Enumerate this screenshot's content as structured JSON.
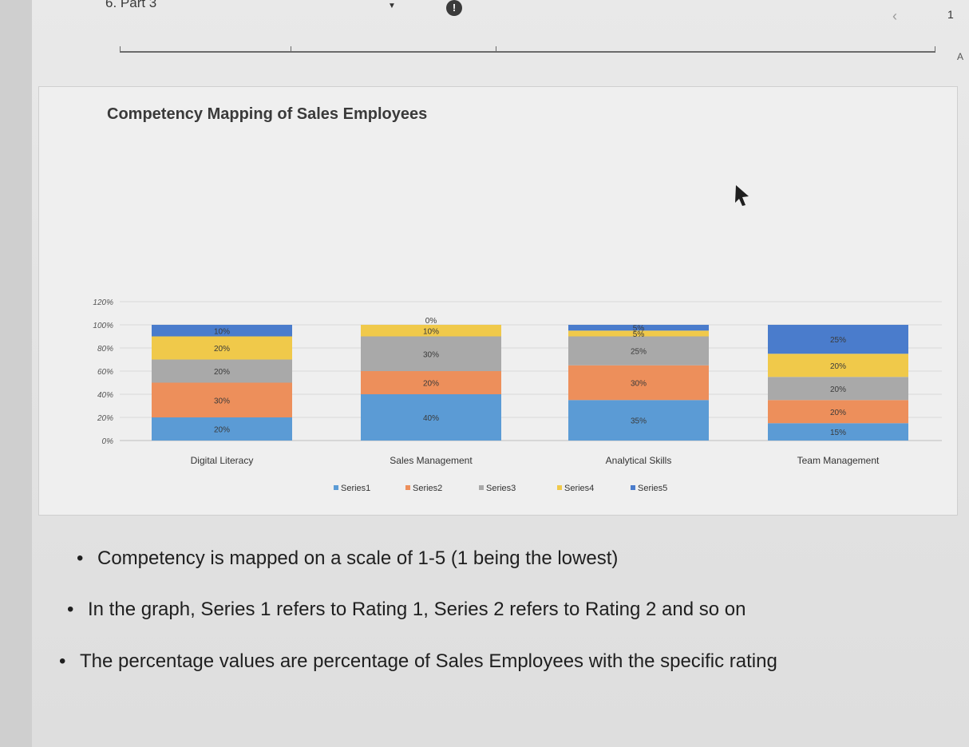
{
  "header": {
    "part_label": "6. Part 3",
    "page_number": "1",
    "side_letter": "A"
  },
  "colors": {
    "series1": "#5b9bd5",
    "series2": "#ed8f5b",
    "series3": "#a9a9a9",
    "series4": "#f0c94a",
    "series5": "#4a7ccc",
    "background": "#efefef",
    "text": "#1f1f1f"
  },
  "chart_data": {
    "type": "bar",
    "stacked": true,
    "title": "Competency Mapping of Sales Employees",
    "categories": [
      "Digital Literacy",
      "Sales Management",
      "Analytical Skills",
      "Team Management"
    ],
    "series": [
      {
        "name": "Series1",
        "values": [
          20,
          40,
          35,
          15
        ],
        "labels": [
          "20%",
          "40%",
          "35%",
          "15%"
        ]
      },
      {
        "name": "Series2",
        "values": [
          30,
          20,
          30,
          20
        ],
        "labels": [
          "30%",
          "20%",
          "30%",
          "20%"
        ]
      },
      {
        "name": "Series3",
        "values": [
          20,
          30,
          25,
          20
        ],
        "labels": [
          "20%",
          "30%",
          "25%",
          "20%"
        ]
      },
      {
        "name": "Series4",
        "values": [
          20,
          10,
          5,
          20
        ],
        "labels": [
          "20%",
          "10%",
          "5%",
          "20%"
        ]
      },
      {
        "name": "Series5",
        "values": [
          10,
          0,
          5,
          25
        ],
        "labels": [
          "10%",
          "0%",
          "5%",
          "25%"
        ]
      }
    ],
    "y_ticks": [
      "0%",
      "20%",
      "40%",
      "60%",
      "80%",
      "100%",
      "120%"
    ],
    "ylim": [
      0,
      120
    ],
    "legend_position": "bottom",
    "xlabel": "",
    "ylabel": ""
  },
  "notes": [
    "Competency is mapped on a scale of 1-5 (1 being the lowest)",
    "In the graph, Series 1 refers to Rating 1, Series 2 refers to Rating 2 and so on",
    "The percentage values are percentage of Sales Employees with the specific rating"
  ]
}
